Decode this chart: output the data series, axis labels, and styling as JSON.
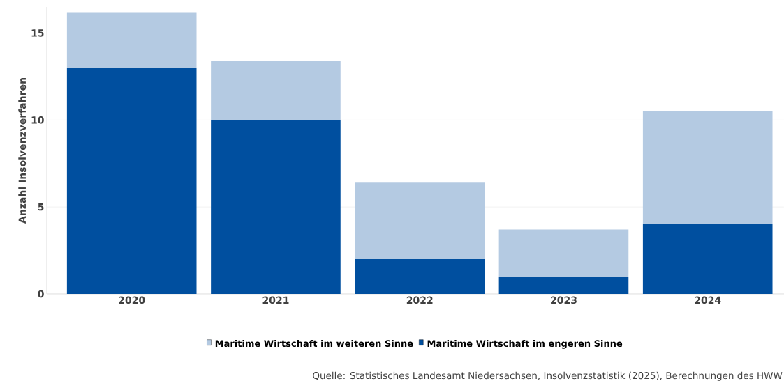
{
  "chart_data": {
    "type": "bar",
    "stacked": true,
    "categories": [
      "2020",
      "2021",
      "2022",
      "2023",
      "2024"
    ],
    "series": [
      {
        "name": "Maritime Wirtschaft im engeren Sinne",
        "color": "#004f9f",
        "values": [
          13,
          10,
          2,
          1,
          4
        ]
      },
      {
        "name": "Maritime Wirtschaft im weiteren Sinne",
        "color": "#b4cae2",
        "values": [
          3.2,
          3.4,
          4.4,
          2.7,
          6.5
        ]
      }
    ],
    "ylabel": "Anzahl Insolvenzverfahren",
    "ylim": [
      0,
      16.5
    ],
    "yticks": [
      0,
      5,
      10,
      15
    ],
    "grid": "y",
    "legend": "bottom",
    "annotations": [
      "Quelle: Statistisches Landesamt Niedersachsen, Insolvenzstatistik (2025), Berechnungen des HWW"
    ]
  }
}
